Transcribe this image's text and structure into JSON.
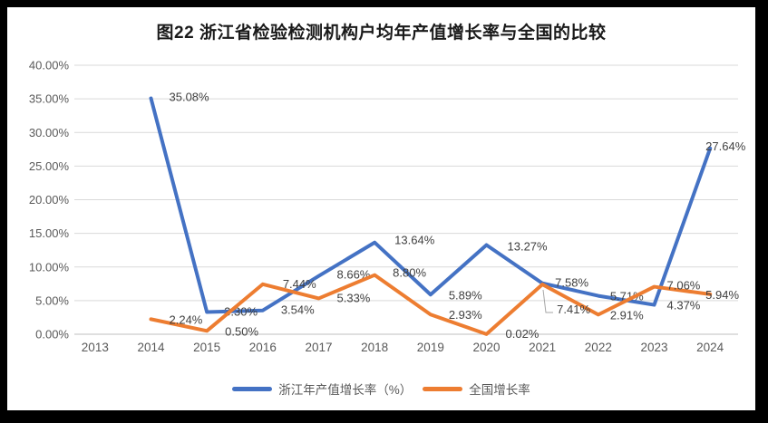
{
  "window": {
    "frame_color": "#000000",
    "canvas_color": "#ffffff"
  },
  "chart_data": {
    "type": "line",
    "title": "图22 浙江省检验检测机构户均年产值增长率与全国的比较",
    "categories": [
      "2013",
      "2014",
      "2015",
      "2016",
      "2017",
      "2018",
      "2019",
      "2020",
      "2021",
      "2022",
      "2023",
      "2024"
    ],
    "series": [
      {
        "name": "浙江年产值增长率（%）",
        "color": "#4472C4",
        "values": [
          null,
          35.08,
          3.3,
          3.54,
          8.66,
          13.64,
          5.89,
          13.27,
          7.58,
          5.71,
          4.37,
          27.64
        ],
        "data_labels": [
          null,
          "35.08%",
          "3.30%",
          "3.54%",
          "8.66%",
          "13.64%",
          "5.89%",
          "13.27%",
          "7.58%",
          "5.71%",
          "4.37%",
          "27.64%"
        ]
      },
      {
        "name": "全国增长率",
        "color": "#ED7D31",
        "values": [
          null,
          2.24,
          0.5,
          7.44,
          5.33,
          8.8,
          2.93,
          0.02,
          7.41,
          2.91,
          7.06,
          5.94
        ],
        "data_labels": [
          null,
          "2.24%",
          "0.50%",
          "7.44%",
          "5.33%",
          "8.80%",
          "2.93%",
          "0.02%",
          "7.41%",
          "2.91%",
          "7.06%",
          "5.94%"
        ]
      }
    ],
    "y_axis": {
      "min": 0,
      "max": 40,
      "step": 5,
      "tick_labels": [
        "0.00%",
        "5.00%",
        "10.00%",
        "15.00%",
        "20.00%",
        "25.00%",
        "30.00%",
        "35.00%",
        "40.00%"
      ]
    },
    "x_axis": {
      "tick_labels": [
        "2013",
        "2014",
        "2015",
        "2016",
        "2017",
        "2018",
        "2019",
        "2020",
        "2021",
        "2022",
        "2023",
        "2024"
      ]
    },
    "grid": true,
    "legend_position": "bottom",
    "colors": {
      "gridline": "#D9D9D9",
      "axis_line": "#BFBFBF",
      "axis_text": "#595959",
      "data_label_text": "#404040",
      "leader_line": "#A6A6A6"
    }
  }
}
